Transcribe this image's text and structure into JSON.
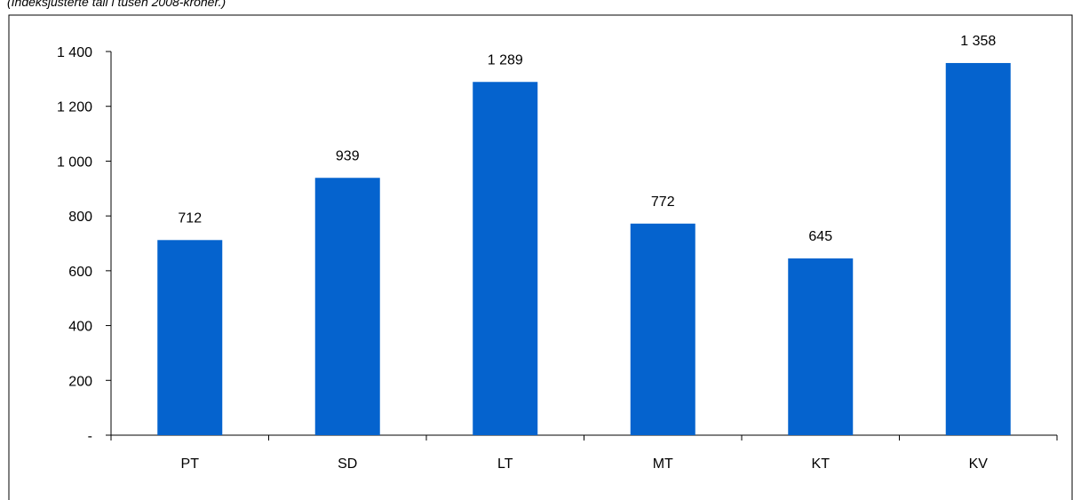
{
  "subtitle": "(Indeksjusterte tall i tusen 2008-kroner.)",
  "colors": {
    "bar": "#0563CE",
    "axis": "#000000"
  },
  "chart_data": {
    "type": "bar",
    "title": "",
    "xlabel": "",
    "ylabel": "",
    "categories": [
      "PT",
      "SD",
      "LT",
      "MT",
      "KT",
      "KV"
    ],
    "values": [
      712,
      939,
      1289,
      772,
      645,
      1358
    ],
    "data_labels": [
      "712",
      "939",
      "1 289",
      "772",
      "645",
      "1 358"
    ],
    "ylim": [
      0,
      1400
    ],
    "y_ticks": [
      0,
      200,
      400,
      600,
      800,
      1000,
      1200,
      1400
    ],
    "y_tick_labels": [
      "-",
      "200",
      "400",
      "600",
      "800",
      "1 000",
      "1 200",
      "1 400"
    ],
    "grid": false,
    "legend": "none"
  }
}
